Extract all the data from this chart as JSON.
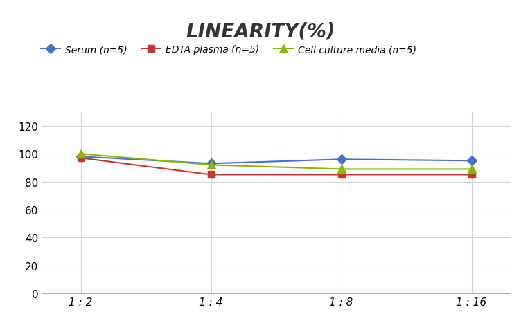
{
  "title": "LINEARITY(%)",
  "x_labels": [
    "1 : 2",
    "1 : 4",
    "1 : 8",
    "1 : 16"
  ],
  "x_positions": [
    0,
    1,
    2,
    3
  ],
  "series": [
    {
      "label": "Serum (n=5)",
      "values": [
        98,
        93,
        96,
        95
      ],
      "color": "#4472C4",
      "marker": "D",
      "markersize": 7
    },
    {
      "label": "EDTA plasma (n=5)",
      "values": [
        97,
        85,
        85,
        85
      ],
      "color": "#C0392B",
      "marker": "s",
      "markersize": 7
    },
    {
      "label": "Cell culture media (n=5)",
      "values": [
        100,
        92,
        89,
        89
      ],
      "color": "#8DB600",
      "marker": "^",
      "markersize": 8
    }
  ],
  "ylim": [
    0,
    130
  ],
  "yticks": [
    0,
    20,
    40,
    60,
    80,
    100,
    120
  ],
  "background_color": "#FFFFFF",
  "grid_color": "#D3D3D3",
  "title_fontsize": 20,
  "legend_fontsize": 10,
  "tick_fontsize": 11
}
